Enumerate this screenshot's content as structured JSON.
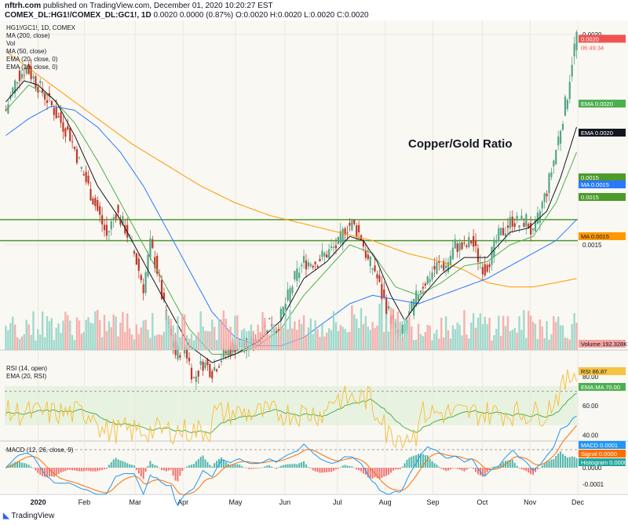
{
  "header": {
    "author": "nftrh.com",
    "published": "published on TradingView.com, December 01, 2020 10:20:27 EST",
    "symbol_line": "COMEX_DL:HG1!/COMEX_DL:GC1!, 1D",
    "ohlc": "0.0020 0.0000 (0.87%) O:0.0020 H:0.0020 L:0.0020 C:0.0020"
  },
  "legend": [
    "HG1!/GC1!, 1D, COMEX",
    "MA (200, close)",
    "Vol",
    "MA (50, close)",
    "EMA (20, close, 0)",
    "EMA (10, close, 0)"
  ],
  "annotation": "Copper/Gold Ratio",
  "footer": "TradingView",
  "colors": {
    "up": "#53a586",
    "down": "#c0392b",
    "vol_up": "#8fd3c5",
    "vol_down": "#f4a3a0",
    "ema10": "#131722",
    "ema20": "#4caf50",
    "ma50": "#2979ff",
    "ma200": "#ff9800",
    "hline": "#4c9a2a",
    "rsi": "#f5c242",
    "rsi_ema": "#4caf50",
    "macd": "#2196f3",
    "signal": "#ff6d00"
  },
  "chart_data": {
    "type": "candlestick",
    "title": "Copper/Gold Ratio",
    "x_axis_labels": [
      "2020",
      "Feb",
      "Mar",
      "Apr",
      "May",
      "Jun",
      "Jul",
      "Aug",
      "Sep",
      "Oct",
      "Nov",
      "Dec"
    ],
    "main": {
      "y_ticks": [
        "0.0020",
        "0.0015"
      ],
      "horizontal_lines": [
        0.00156,
        0.00151
      ],
      "last_price_label": "0.0020",
      "countdown": "06:49:34",
      "price_labels": [
        {
          "name": "EMA",
          "value": "0.0020"
        },
        {
          "name": "EMA",
          "value": "0.0020"
        },
        {
          "name": "",
          "value": "0.0015"
        },
        {
          "name": "MA",
          "value": "0.0015"
        },
        {
          "name": "",
          "value": "0.0015"
        },
        {
          "name": "MA",
          "value": "0.0015"
        }
      ],
      "close_keypoints": [
        [
          0,
          0.00182
        ],
        [
          5,
          0.0019
        ],
        [
          9,
          0.00192
        ],
        [
          14,
          0.00188
        ],
        [
          20,
          0.00183
        ],
        [
          23,
          0.0018
        ],
        [
          28,
          0.00176
        ],
        [
          33,
          0.00168
        ],
        [
          40,
          0.00158
        ],
        [
          44,
          0.00152
        ],
        [
          48,
          0.00158
        ],
        [
          52,
          0.00154
        ],
        [
          56,
          0.00148
        ],
        [
          60,
          0.0014
        ],
        [
          63,
          0.0015
        ],
        [
          66,
          0.00144
        ],
        [
          70,
          0.00132
        ],
        [
          74,
          0.00124
        ],
        [
          78,
          0.00126
        ],
        [
          82,
          0.00118
        ],
        [
          86,
          0.00122
        ],
        [
          90,
          0.0012
        ],
        [
          95,
          0.00124
        ],
        [
          100,
          0.00126
        ],
        [
          105,
          0.00126
        ],
        [
          110,
          0.00128
        ],
        [
          115,
          0.00132
        ],
        [
          118,
          0.0013
        ],
        [
          122,
          0.00136
        ],
        [
          126,
          0.00142
        ],
        [
          130,
          0.00146
        ],
        [
          135,
          0.00146
        ],
        [
          140,
          0.00148
        ],
        [
          145,
          0.0015
        ],
        [
          148,
          0.00154
        ],
        [
          151,
          0.00155
        ],
        [
          155,
          0.00152
        ],
        [
          158,
          0.00146
        ],
        [
          161,
          0.00144
        ],
        [
          164,
          0.00138
        ],
        [
          167,
          0.00134
        ],
        [
          170,
          0.0013
        ],
        [
          172,
          0.00128
        ],
        [
          175,
          0.00132
        ],
        [
          178,
          0.00136
        ],
        [
          181,
          0.0014
        ],
        [
          184,
          0.00142
        ],
        [
          188,
          0.00145
        ],
        [
          192,
          0.00145
        ],
        [
          196,
          0.0015
        ],
        [
          200,
          0.00149
        ],
        [
          203,
          0.00151
        ],
        [
          206,
          0.00147
        ],
        [
          209,
          0.00144
        ],
        [
          212,
          0.00148
        ],
        [
          215,
          0.00152
        ],
        [
          218,
          0.00154
        ],
        [
          221,
          0.00156
        ],
        [
          224,
          0.00155
        ],
        [
          227,
          0.00156
        ],
        [
          230,
          0.00152
        ],
        [
          233,
          0.00158
        ],
        [
          236,
          0.00163
        ],
        [
          239,
          0.0017
        ],
        [
          242,
          0.00178
        ],
        [
          245,
          0.00186
        ],
        [
          247,
          0.00194
        ],
        [
          249,
          0.002
        ]
      ],
      "ema10_keypoints": [
        [
          0,
          0.00184
        ],
        [
          8,
          0.00189
        ],
        [
          14,
          0.00188
        ],
        [
          22,
          0.00184
        ],
        [
          30,
          0.00176
        ],
        [
          40,
          0.00164
        ],
        [
          50,
          0.00156
        ],
        [
          60,
          0.00146
        ],
        [
          70,
          0.00136
        ],
        [
          80,
          0.00126
        ],
        [
          90,
          0.00122
        ],
        [
          100,
          0.00124
        ],
        [
          110,
          0.00127
        ],
        [
          120,
          0.00132
        ],
        [
          130,
          0.00142
        ],
        [
          140,
          0.00146
        ],
        [
          150,
          0.00152
        ],
        [
          156,
          0.00151
        ],
        [
          162,
          0.00146
        ],
        [
          168,
          0.00138
        ],
        [
          174,
          0.00132
        ],
        [
          182,
          0.00138
        ],
        [
          190,
          0.00143
        ],
        [
          200,
          0.00147
        ],
        [
          210,
          0.00147
        ],
        [
          220,
          0.00153
        ],
        [
          228,
          0.00154
        ],
        [
          236,
          0.00158
        ],
        [
          242,
          0.00166
        ],
        [
          249,
          0.00178
        ]
      ],
      "ema20_keypoints": [
        [
          0,
          0.00182
        ],
        [
          10,
          0.00188
        ],
        [
          20,
          0.00185
        ],
        [
          30,
          0.00179
        ],
        [
          40,
          0.0017
        ],
        [
          50,
          0.0016
        ],
        [
          60,
          0.0015
        ],
        [
          70,
          0.0014
        ],
        [
          80,
          0.0013
        ],
        [
          90,
          0.00124
        ],
        [
          100,
          0.00124
        ],
        [
          110,
          0.00126
        ],
        [
          120,
          0.0013
        ],
        [
          130,
          0.00138
        ],
        [
          140,
          0.00144
        ],
        [
          150,
          0.0015
        ],
        [
          160,
          0.00148
        ],
        [
          170,
          0.0014
        ],
        [
          180,
          0.00138
        ],
        [
          190,
          0.00141
        ],
        [
          200,
          0.00145
        ],
        [
          210,
          0.00146
        ],
        [
          220,
          0.0015
        ],
        [
          230,
          0.00152
        ],
        [
          240,
          0.0016
        ],
        [
          249,
          0.00172
        ]
      ],
      "ma50_keypoints": [
        [
          0,
          0.00176
        ],
        [
          10,
          0.0018
        ],
        [
          20,
          0.00183
        ],
        [
          30,
          0.00182
        ],
        [
          40,
          0.00178
        ],
        [
          50,
          0.00172
        ],
        [
          60,
          0.00164
        ],
        [
          70,
          0.00154
        ],
        [
          80,
          0.00144
        ],
        [
          90,
          0.00134
        ],
        [
          100,
          0.00128
        ],
        [
          110,
          0.00126
        ],
        [
          120,
          0.00126
        ],
        [
          130,
          0.00128
        ],
        [
          140,
          0.00132
        ],
        [
          150,
          0.00136
        ],
        [
          160,
          0.00138
        ],
        [
          170,
          0.00137
        ],
        [
          180,
          0.00136
        ],
        [
          190,
          0.00138
        ],
        [
          200,
          0.0014
        ],
        [
          210,
          0.00142
        ],
        [
          220,
          0.00145
        ],
        [
          230,
          0.00148
        ],
        [
          240,
          0.00151
        ],
        [
          249,
          0.00156
        ]
      ],
      "ma200_keypoints": [
        [
          0,
          0.00196
        ],
        [
          10,
          0.00192
        ],
        [
          25,
          0.00186
        ],
        [
          40,
          0.0018
        ],
        [
          55,
          0.00174
        ],
        [
          70,
          0.00169
        ],
        [
          85,
          0.00164
        ],
        [
          100,
          0.0016
        ],
        [
          115,
          0.00157
        ],
        [
          130,
          0.00155
        ],
        [
          145,
          0.00153
        ],
        [
          160,
          0.00151
        ],
        [
          175,
          0.00148
        ],
        [
          190,
          0.00146
        ],
        [
          200,
          0.00144
        ],
        [
          210,
          0.00141
        ],
        [
          220,
          0.0014
        ],
        [
          230,
          0.0014
        ],
        [
          240,
          0.00141
        ],
        [
          249,
          0.00142
        ]
      ]
    },
    "volume": {
      "label": "Volume",
      "last_value": "192.328K"
    },
    "rsi": {
      "legend": [
        "RSI (14, open)",
        "EMA (20, RSI)"
      ],
      "y_ticks": [
        "80.00",
        "60.00",
        "40.00"
      ],
      "band": [
        30,
        70
      ],
      "last_rsi_label": "RSI",
      "last_rsi": "86.87",
      "ema_label": "EMA:MA",
      "ema_value": "70.00"
    },
    "macd": {
      "legend": "MACD (12, 26, close, 9)",
      "y_ticks": [
        "0.0000",
        "-0.0001"
      ],
      "macd_label": "MACD",
      "macd_value": "0.0001",
      "signal_label": "Signal",
      "signal_value": "0.0000",
      "hist_label": "Histogram",
      "hist_value": "0.0000"
    }
  }
}
